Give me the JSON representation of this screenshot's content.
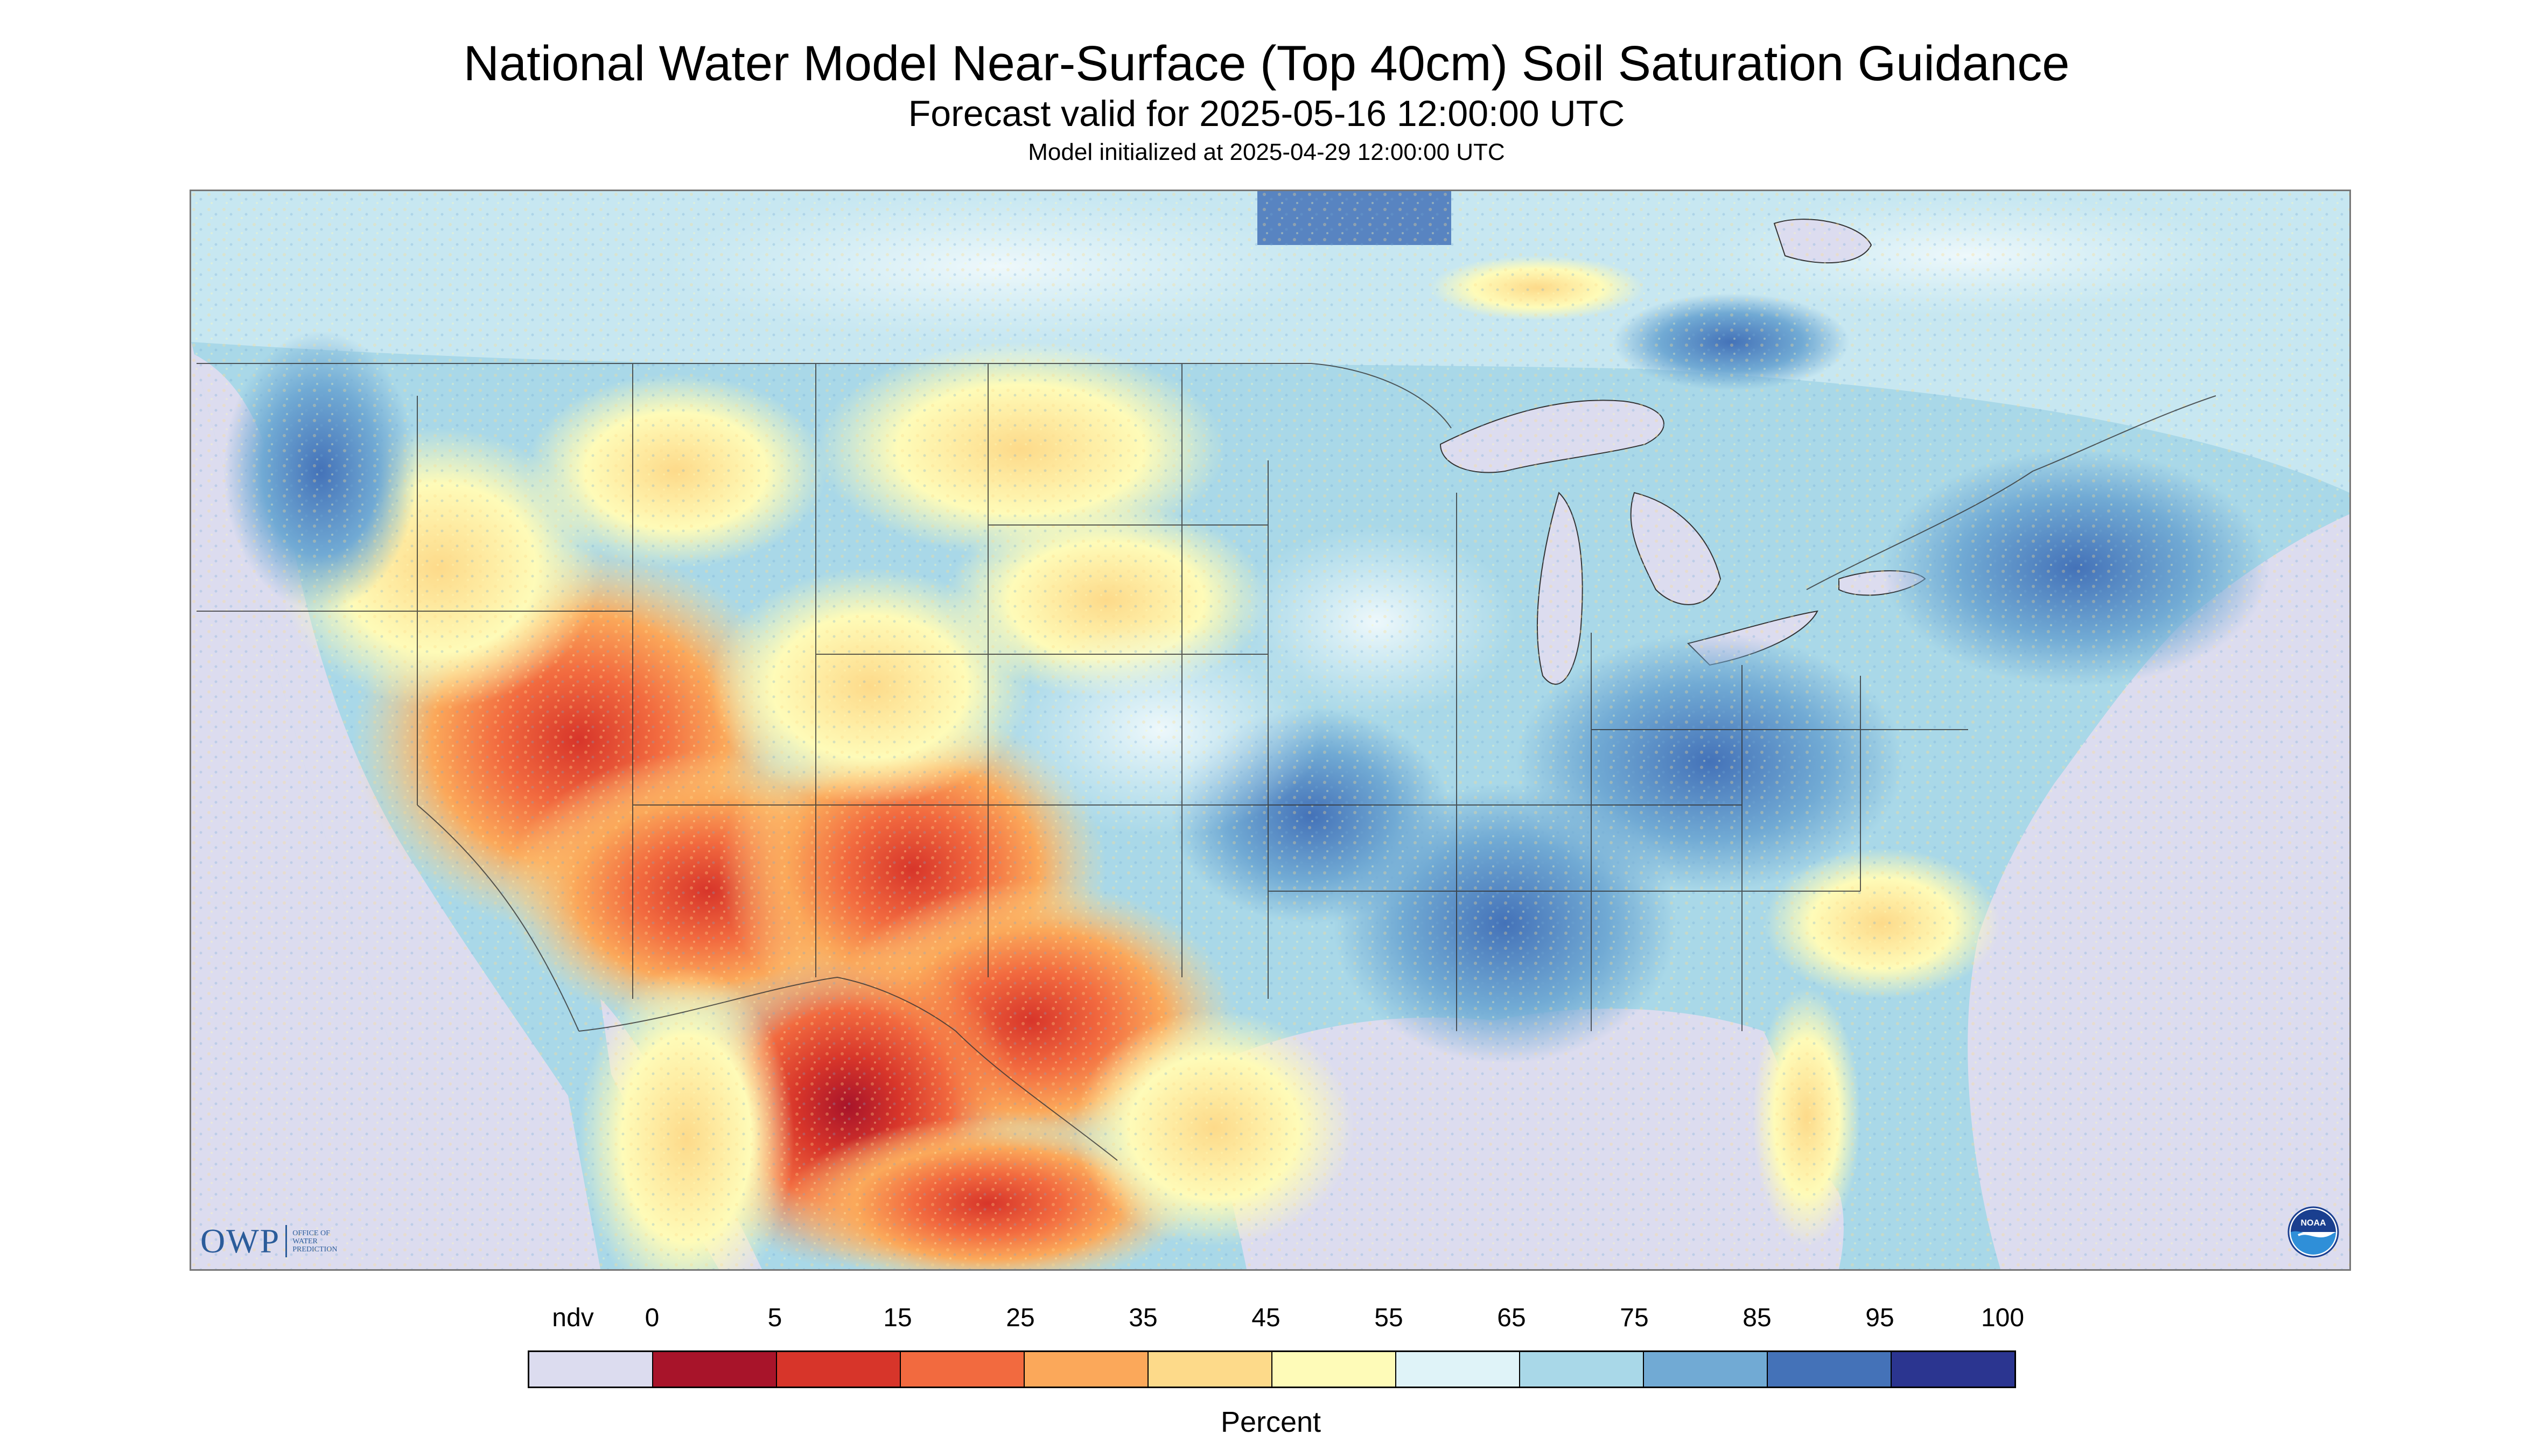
{
  "title": "National Water Model Near-Surface (Top 40cm) Soil Saturation Guidance",
  "subtitle": "Forecast valid for 2025-05-16 12:00:00 UTC",
  "init_line": "Model initialized at 2025-04-29 12:00:00 UTC",
  "legend": {
    "labels": [
      "ndv",
      "0",
      "5",
      "15",
      "25",
      "35",
      "45",
      "55",
      "65",
      "75",
      "85",
      "95",
      "100"
    ],
    "colors": [
      "#dcdcef",
      "#a8142a",
      "#d7352a",
      "#f26a3f",
      "#fba85a",
      "#fdda8a",
      "#fefbb8",
      "#dff3f8",
      "#a9d8e8",
      "#71aad4",
      "#4472b8",
      "#2b3590"
    ],
    "units": "Percent"
  },
  "logos": {
    "owp": {
      "text": "OWP",
      "sub": [
        "OFFICE OF",
        "WATER",
        "PREDICTION"
      ]
    },
    "noaa": {
      "text": "NOAA"
    }
  },
  "map": {
    "ndv_color": "#dcdcef",
    "water_color": "#dcdcef",
    "border_color": "#333333"
  }
}
